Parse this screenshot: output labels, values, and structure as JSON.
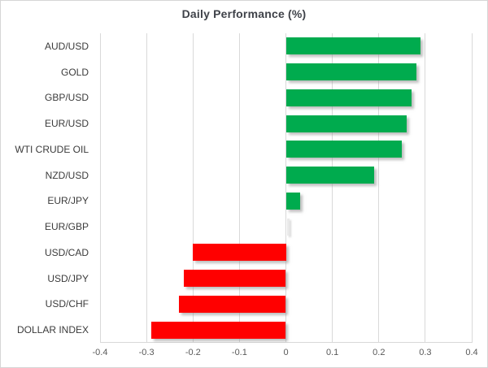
{
  "chart_data": {
    "type": "bar",
    "orientation": "horizontal",
    "title": "Daily Performance (%)",
    "categories": [
      "AUD/USD",
      "GOLD",
      "GBP/USD",
      "EUR/USD",
      "WTI CRUDE OIL",
      "NZD/USD",
      "EUR/JPY",
      "EUR/GBP",
      "USD/CAD",
      "USD/JPY",
      "USD/CHF",
      "DOLLAR INDEX"
    ],
    "values": [
      0.29,
      0.28,
      0.27,
      0.26,
      0.25,
      0.19,
      0.03,
      0.0,
      -0.2,
      -0.22,
      -0.23,
      -0.29
    ],
    "xlabel": "",
    "ylabel": "",
    "xlim": [
      -0.4,
      0.4
    ],
    "x_ticks": [
      -0.4,
      -0.3,
      -0.2,
      -0.1,
      0,
      0.1,
      0.2,
      0.3,
      0.4
    ],
    "x_tick_labels": [
      "-0.4",
      "-0.3",
      "-0.2",
      "-0.1",
      "0",
      "0.1",
      "0.2",
      "0.3",
      "0.4"
    ],
    "grid": true,
    "legend": "none",
    "colors": {
      "positive_bar": "#00AB4E",
      "negative_bar": "#FF0000",
      "zero_bar_shadow": "#E9E9E9",
      "gridline": "#D9D9D9",
      "title_text": "#3F4249",
      "category_text": "#3B3B3B",
      "tick_text": "#595959",
      "frame_border": "#D6D6D6",
      "background": "#FFFFFF"
    }
  }
}
